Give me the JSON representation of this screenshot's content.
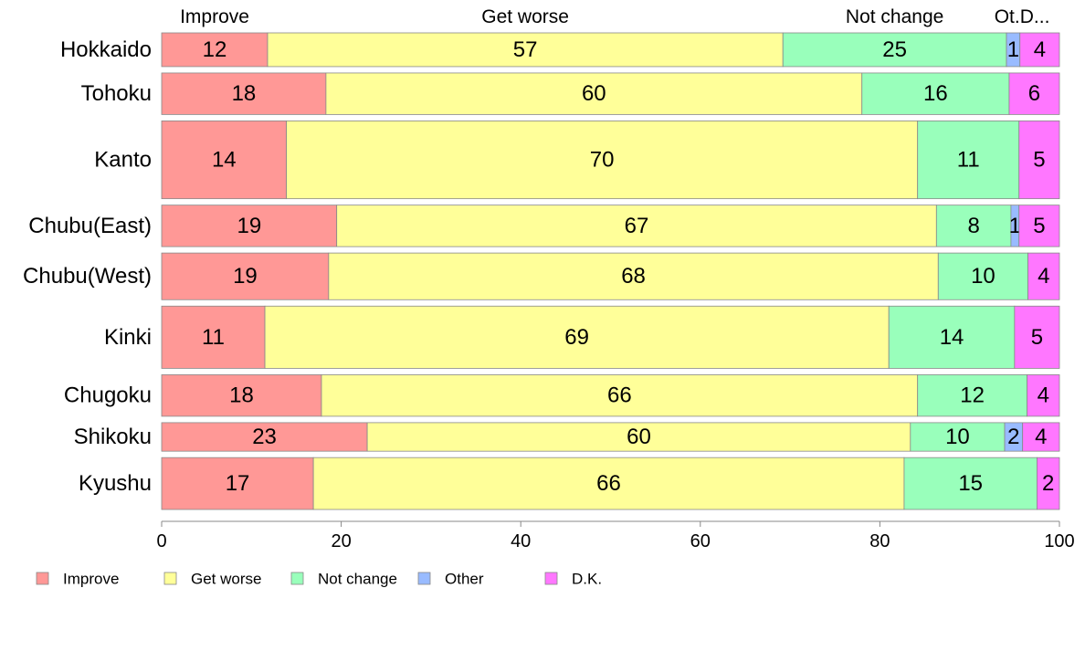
{
  "chart_data": {
    "type": "bar",
    "orientation": "horizontal",
    "stacked": true,
    "variable_width": true,
    "categories": [
      "Hokkaido",
      "Tohoku",
      "Kanto",
      "Chubu(East)",
      "Chubu(West)",
      "Kinki",
      "Chugoku",
      "Shikoku",
      "Kyushu"
    ],
    "category_weights": [
      0.65,
      0.8,
      1.5,
      0.8,
      0.9,
      1.2,
      0.8,
      0.55,
      1.0
    ],
    "series": [
      {
        "name": "Improve",
        "color": "#FF9896",
        "values": [
          11.8,
          18.3,
          13.9,
          19.5,
          18.6,
          11.5,
          17.8,
          22.9,
          16.9
        ],
        "labels": [
          "12",
          "18",
          "14",
          "19",
          "19",
          "11",
          "18",
          "23",
          "17"
        ]
      },
      {
        "name": "Get worse",
        "color": "#FFFF99",
        "values": [
          57.4,
          59.7,
          70.3,
          66.8,
          67.9,
          69.5,
          66.4,
          60.5,
          65.8
        ],
        "labels": [
          "57",
          "60",
          "70",
          "67",
          "68",
          "69",
          "66",
          "60",
          "66"
        ]
      },
      {
        "name": "Not change",
        "color": "#99FFBB",
        "values": [
          24.9,
          16.4,
          11.3,
          8.3,
          10.0,
          14.0,
          12.2,
          10.5,
          14.8
        ],
        "labels": [
          "25",
          "16",
          "11",
          "8",
          "10",
          "14",
          "12",
          "10",
          "15"
        ]
      },
      {
        "name": "Other",
        "color": "#99BBFF",
        "values": [
          1.5,
          0.0,
          0.0,
          0.9,
          0.0,
          0.0,
          0.0,
          2.0,
          0.0
        ],
        "labels": [
          "1",
          "",
          "",
          "1",
          "",
          "",
          "",
          "2",
          ""
        ]
      },
      {
        "name": "D.K.",
        "color": "#FF77FF",
        "values": [
          4.4,
          5.6,
          4.5,
          4.5,
          3.5,
          5.0,
          3.6,
          4.1,
          2.5
        ],
        "labels": [
          "4",
          "6",
          "5",
          "5",
          "4",
          "5",
          "4",
          "4",
          "2"
        ]
      }
    ],
    "column_headers": [
      "Improve",
      "Get worse",
      "Not change",
      "Ot.",
      "D..."
    ],
    "xlim": [
      0,
      100
    ],
    "xticks": [
      0,
      20,
      40,
      60,
      80,
      100
    ],
    "grid": false,
    "legend_position": "bottom-left",
    "title": "",
    "xlabel": "",
    "ylabel": ""
  }
}
